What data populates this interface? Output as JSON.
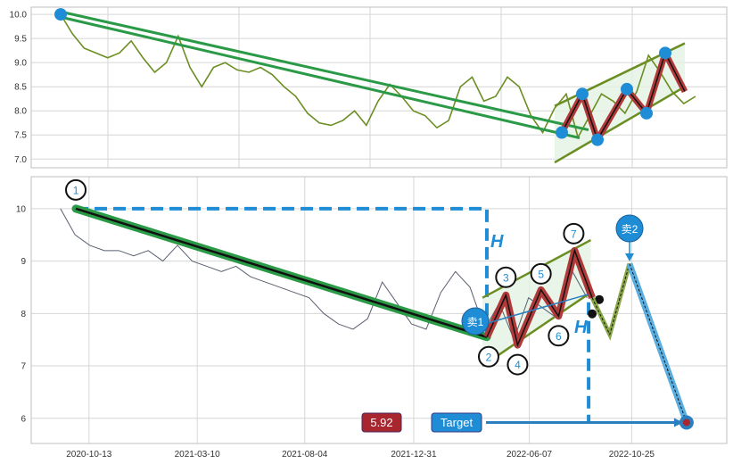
{
  "chart_data": [
    {
      "type": "line",
      "panel": "top",
      "ylim": [
        6.82,
        10.15
      ],
      "yticks": [
        "7.0",
        "7.5",
        "8.0",
        "8.5",
        "9.0",
        "9.5",
        "10.0"
      ],
      "grid": true,
      "price_color": "#6b8e23",
      "series": [
        {
          "values": [
            10.0,
            9.6,
            9.3,
            9.2,
            9.1,
            9.2,
            9.45,
            9.1,
            8.8,
            9.0,
            9.55,
            8.9,
            8.5,
            8.9,
            9.0,
            8.85,
            8.8,
            8.9,
            8.75,
            8.5,
            8.3,
            7.95,
            7.75,
            7.7,
            7.8,
            8.0,
            7.7,
            8.2,
            8.55,
            8.3,
            8.0,
            7.9,
            7.65,
            7.8,
            8.5,
            8.7,
            8.2,
            8.3,
            8.7,
            8.5,
            7.9,
            7.55,
            8.05,
            8.35,
            7.45,
            7.9,
            8.35,
            8.2,
            7.95,
            8.4,
            9.15,
            8.8,
            8.4,
            8.15,
            8.3
          ]
        }
      ],
      "pattern_point_values": [
        10.0,
        7.55,
        8.35,
        7.4,
        8.45,
        7.95,
        9.2,
        8.4
      ],
      "channel": {
        "upper": [
          8.1,
          9.4
        ],
        "lower": [
          6.93,
          8.5
        ]
      },
      "colors": {
        "points": "#1f8dd6",
        "trend": "#2a9a46",
        "zigzag": "#b03a3a",
        "channel": "#6b8e23",
        "fill": "#e3f3e3"
      }
    },
    {
      "type": "line",
      "panel": "bottom",
      "xlim": [
        "2020-07-26",
        "2023-03-04"
      ],
      "ylim": [
        5.52,
        10.61
      ],
      "xticks": [
        "2020-10-13",
        "2021-03-10",
        "2021-08-04",
        "2021-12-31",
        "2022-06-07",
        "2022-10-25"
      ],
      "yticks": [
        "6",
        "7",
        "8",
        "9",
        "10"
      ],
      "grid": true,
      "price_color": "#5a6070",
      "series": [
        {
          "x": [
            "2020-09-04",
            "2020-09-24",
            "2020-10-14",
            "2020-11-03",
            "2020-11-23",
            "2020-12-13",
            "2021-01-02",
            "2021-01-22",
            "2021-02-11",
            "2021-03-03",
            "2021-03-23",
            "2021-04-12",
            "2021-05-02",
            "2021-05-22",
            "2021-06-11",
            "2021-07-01",
            "2021-07-21",
            "2021-08-10",
            "2021-08-30",
            "2021-09-19",
            "2021-10-09",
            "2021-10-29",
            "2021-11-18",
            "2021-12-08",
            "2021-12-28",
            "2022-01-17",
            "2022-02-06",
            "2022-02-26",
            "2022-03-18",
            "2022-04-07",
            "2022-04-27",
            "2022-05-17",
            "2022-06-06",
            "2022-06-26",
            "2022-07-16",
            "2022-08-05",
            "2022-08-25"
          ],
          "values": [
            10.0,
            9.5,
            9.3,
            9.2,
            9.2,
            9.1,
            9.2,
            9.0,
            9.3,
            9.0,
            8.9,
            8.8,
            8.9,
            8.7,
            8.6,
            8.5,
            8.4,
            8.3,
            8.0,
            7.8,
            7.7,
            7.9,
            8.6,
            8.2,
            7.8,
            7.7,
            8.4,
            8.8,
            8.5,
            7.7,
            8.2,
            7.5,
            8.3,
            8.1,
            7.9,
            8.8,
            8.3
          ]
        }
      ],
      "pattern_points": [
        {
          "label": "1",
          "date": "2020-09-25",
          "value": 10.0
        },
        {
          "label": "2",
          "date": "2022-04-10",
          "value": 7.55
        },
        {
          "label": "3",
          "date": "2022-05-06",
          "value": 8.35
        },
        {
          "label": "4",
          "date": "2022-05-22",
          "value": 7.4
        },
        {
          "label": "5",
          "date": "2022-06-23",
          "value": 8.45
        },
        {
          "label": "6",
          "date": "2022-07-17",
          "value": 7.95
        },
        {
          "label": "7",
          "date": "2022-08-08",
          "value": 9.2
        }
      ],
      "pattern_end": {
        "date": "2022-09-01",
        "value": 8.3
      },
      "projection": [
        {
          "date": "2022-09-01",
          "value": 8.3
        },
        {
          "date": "2022-09-25",
          "value": 7.6
        },
        {
          "date": "2022-10-22",
          "value": 8.95
        }
      ],
      "target": {
        "date": "2023-01-08",
        "value": 5.92
      },
      "channel": {
        "start": "2022-04-04",
        "end": "2022-08-30",
        "upper": [
          8.3,
          9.4
        ],
        "lower": [
          7.0,
          8.4
        ]
      },
      "annotations": {
        "height_label_1": "H",
        "height_label_2": "H",
        "sell_1": "卖1",
        "sell_2": "卖2",
        "target_value": "5.92",
        "target_label": "Target"
      },
      "colors": {
        "trend": "#2a9a46",
        "zigzag": "#b03a3a",
        "channel": "#6b8e23",
        "fill": "#e3f3e3",
        "dash": "#1f8dd6",
        "target_line": "#5aaee0",
        "value_box": "#a8262e",
        "target_box": "#1f8dd6",
        "projection": "#8aa84a"
      }
    }
  ]
}
